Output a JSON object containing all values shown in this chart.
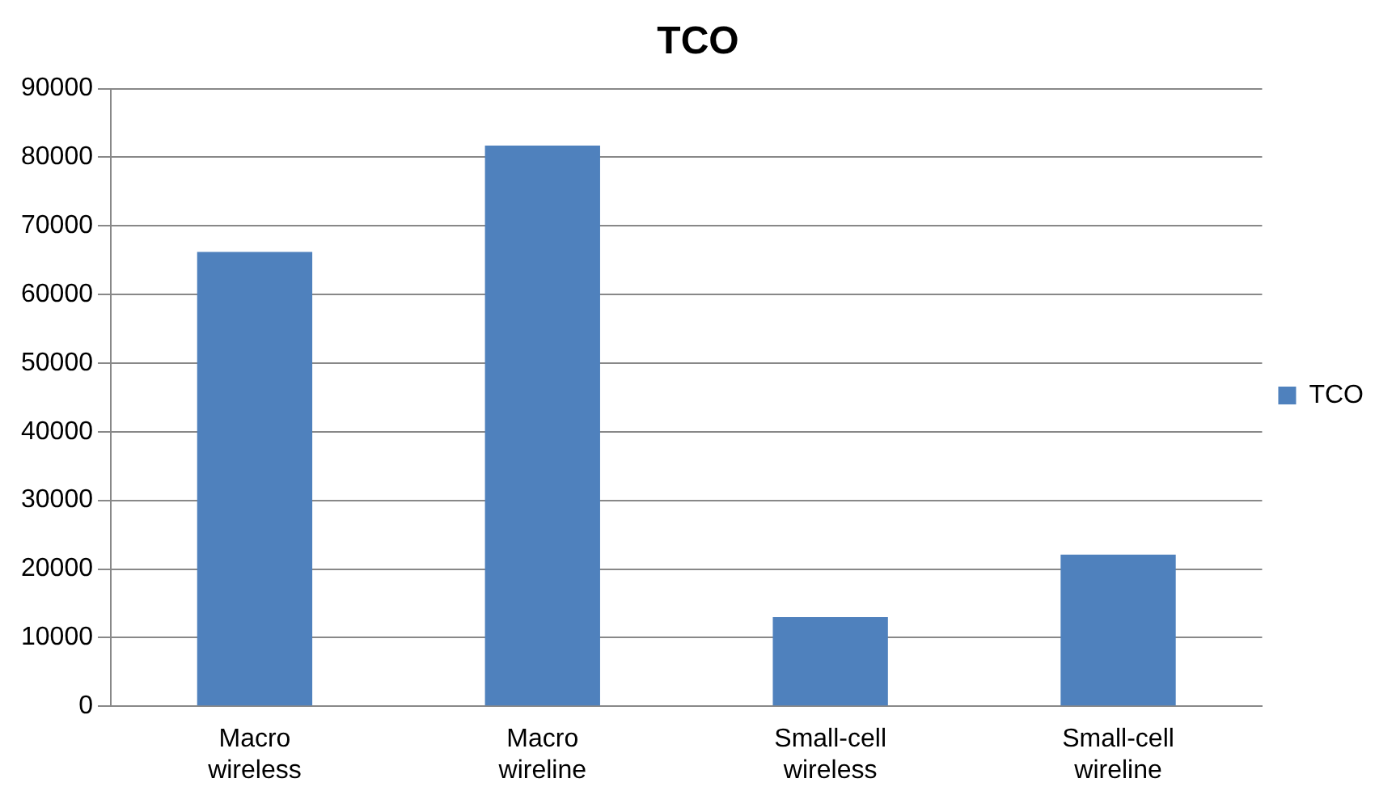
{
  "chart_data": {
    "type": "bar",
    "title": "TCO",
    "categories": [
      "Macro wireless",
      "Macro wireline",
      "Small-cell wireless",
      "Small-cell wireline"
    ],
    "series": [
      {
        "name": "TCO",
        "color": "#4f81bd",
        "values": [
          66200,
          81700,
          13000,
          22100
        ]
      }
    ],
    "ylim": [
      0,
      90000
    ],
    "yticks": [
      0,
      10000,
      20000,
      30000,
      40000,
      50000,
      60000,
      70000,
      80000,
      90000
    ],
    "grid": "y",
    "legend": "right"
  }
}
